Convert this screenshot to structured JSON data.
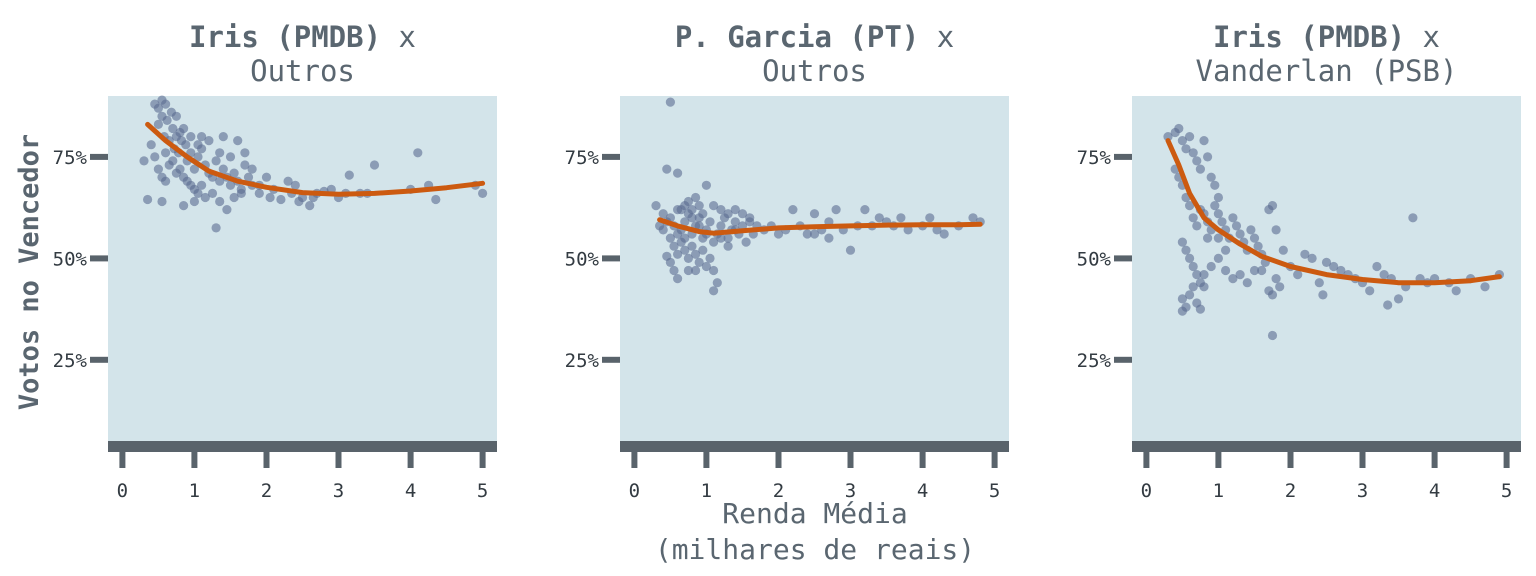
{
  "figure": {
    "ylabel": "Votos no Vencedor",
    "xlabel_line1": "Renda Média",
    "xlabel_line2": "(milhares de reais)",
    "colors": {
      "panel_bg": "#d3e4ea",
      "points": "#5b6d91",
      "fit_line": "#cc5a10",
      "axis": "#59636b",
      "text": "#5a6670"
    }
  },
  "chart_data": [
    {
      "type": "scatter",
      "title_bold": "Iris (PMDB)",
      "title_suffix": " x",
      "subtitle": "Outros",
      "xlim": [
        -0.2,
        5.2
      ],
      "ylim": [
        5,
        90
      ],
      "x_ticks": [
        0,
        1,
        2,
        3,
        4,
        5
      ],
      "y_ticks": [
        25,
        50,
        75
      ],
      "y_tick_labels": [
        "25%",
        "50%",
        "75%"
      ],
      "trend": [
        [
          0.35,
          83
        ],
        [
          0.6,
          79
        ],
        [
          0.9,
          75
        ],
        [
          1.2,
          71.5
        ],
        [
          1.6,
          69
        ],
        [
          2.0,
          67.5
        ],
        [
          2.5,
          66.2
        ],
        [
          3.0,
          65.8
        ],
        [
          3.5,
          66
        ],
        [
          4.0,
          66.6
        ],
        [
          4.5,
          67.4
        ],
        [
          5.0,
          68.5
        ]
      ],
      "points": [
        [
          0.45,
          88
        ],
        [
          0.5,
          87
        ],
        [
          0.55,
          89
        ],
        [
          0.6,
          88
        ],
        [
          0.62,
          84
        ],
        [
          0.68,
          86
        ],
        [
          0.7,
          82
        ],
        [
          0.75,
          80
        ],
        [
          0.8,
          81
        ],
        [
          0.5,
          83
        ],
        [
          0.55,
          85
        ],
        [
          0.58,
          80
        ],
        [
          0.65,
          79
        ],
        [
          0.72,
          77
        ],
        [
          0.78,
          76
        ],
        [
          0.82,
          79
        ],
        [
          0.88,
          78
        ],
        [
          0.9,
          74
        ],
        [
          0.95,
          76
        ],
        [
          1.0,
          72
        ],
        [
          1.05,
          75
        ],
        [
          1.1,
          77
        ],
        [
          1.15,
          73
        ],
        [
          1.2,
          71
        ],
        [
          1.25,
          70
        ],
        [
          1.3,
          74
        ],
        [
          1.35,
          69
        ],
        [
          1.4,
          72
        ],
        [
          1.45,
          70
        ],
        [
          1.5,
          68
        ],
        [
          1.55,
          71
        ],
        [
          1.6,
          69
        ],
        [
          1.65,
          67
        ],
        [
          1.7,
          73
        ],
        [
          1.75,
          70
        ],
        [
          1.8,
          68
        ],
        [
          0.6,
          76
        ],
        [
          0.65,
          73
        ],
        [
          0.7,
          74
        ],
        [
          0.75,
          71
        ],
        [
          0.8,
          72
        ],
        [
          0.85,
          70
        ],
        [
          0.9,
          69
        ],
        [
          0.95,
          68
        ],
        [
          1.0,
          67
        ],
        [
          1.05,
          66
        ],
        [
          1.1,
          68
        ],
        [
          1.15,
          65
        ],
        [
          1.25,
          66
        ],
        [
          1.35,
          64
        ],
        [
          1.45,
          62
        ],
        [
          1.55,
          65
        ],
        [
          1.65,
          66
        ],
        [
          0.4,
          78
        ],
        [
          0.45,
          75
        ],
        [
          0.5,
          72
        ],
        [
          0.55,
          70
        ],
        [
          0.6,
          69
        ],
        [
          0.3,
          74
        ],
        [
          0.35,
          64.5
        ],
        [
          0.55,
          64
        ],
        [
          0.85,
          63
        ],
        [
          1.0,
          64
        ],
        [
          1.3,
          57.5
        ],
        [
          1.4,
          80
        ],
        [
          1.6,
          79
        ],
        [
          1.7,
          76
        ],
        [
          2.0,
          70
        ],
        [
          2.1,
          67
        ],
        [
          2.2,
          64.5
        ],
        [
          2.3,
          69
        ],
        [
          2.4,
          68
        ],
        [
          2.5,
          65
        ],
        [
          2.6,
          63
        ],
        [
          2.7,
          66
        ],
        [
          2.8,
          66.5
        ],
        [
          2.9,
          67
        ],
        [
          3.0,
          65
        ],
        [
          3.1,
          66
        ],
        [
          3.15,
          70.5
        ],
        [
          3.3,
          66
        ],
        [
          3.4,
          66
        ],
        [
          3.5,
          73
        ],
        [
          4.0,
          67
        ],
        [
          4.1,
          76
        ],
        [
          4.25,
          68
        ],
        [
          4.35,
          64.5
        ],
        [
          4.9,
          68
        ],
        [
          5.0,
          66
        ],
        [
          1.9,
          68
        ],
        [
          2.05,
          65
        ],
        [
          2.35,
          66
        ],
        [
          2.45,
          64
        ],
        [
          2.65,
          65
        ],
        [
          1.2,
          79
        ],
        [
          1.1,
          80
        ],
        [
          1.05,
          78
        ],
        [
          0.95,
          80
        ],
        [
          0.85,
          82
        ],
        [
          0.75,
          85
        ],
        [
          1.8,
          72
        ],
        [
          1.9,
          66
        ],
        [
          1.5,
          75
        ],
        [
          1.35,
          76
        ]
      ]
    },
    {
      "type": "scatter",
      "title_bold": "P. Garcia (PT)",
      "title_suffix": " x",
      "subtitle": "Outros",
      "xlim": [
        -0.2,
        5.2
      ],
      "ylim": [
        5,
        90
      ],
      "x_ticks": [
        0,
        1,
        2,
        3,
        4,
        5
      ],
      "y_ticks": [
        25,
        50,
        75
      ],
      "y_tick_labels": [
        "25%",
        "50%",
        "75%"
      ],
      "trend": [
        [
          0.35,
          59.5
        ],
        [
          0.6,
          58
        ],
        [
          0.9,
          56.6
        ],
        [
          1.1,
          56.2
        ],
        [
          1.5,
          56.8
        ],
        [
          2.0,
          57.5
        ],
        [
          2.5,
          57.8
        ],
        [
          3.0,
          58
        ],
        [
          3.5,
          58.2
        ],
        [
          4.0,
          58.3
        ],
        [
          4.5,
          58.3
        ],
        [
          4.8,
          58.4
        ]
      ],
      "points": [
        [
          0.45,
          72
        ],
        [
          0.5,
          88.5
        ],
        [
          0.6,
          71
        ],
        [
          0.3,
          63
        ],
        [
          0.4,
          61
        ],
        [
          0.5,
          60
        ],
        [
          0.55,
          58
        ],
        [
          0.6,
          62
        ],
        [
          0.65,
          57
        ],
        [
          0.7,
          59
        ],
        [
          0.75,
          61
        ],
        [
          0.8,
          56
        ],
        [
          0.85,
          58
        ],
        [
          0.9,
          60
        ],
        [
          0.95,
          55
        ],
        [
          1.0,
          57
        ],
        [
          1.05,
          59
        ],
        [
          1.1,
          54
        ],
        [
          1.15,
          56
        ],
        [
          1.2,
          58
        ],
        [
          1.25,
          60
        ],
        [
          1.3,
          55
        ],
        [
          1.35,
          57
        ],
        [
          1.4,
          59
        ],
        [
          1.45,
          56
        ],
        [
          1.5,
          58
        ],
        [
          1.55,
          54
        ],
        [
          1.6,
          60
        ],
        [
          1.65,
          56
        ],
        [
          1.7,
          58
        ],
        [
          0.5,
          55
        ],
        [
          0.55,
          53
        ],
        [
          0.6,
          51
        ],
        [
          0.65,
          54
        ],
        [
          0.7,
          52
        ],
        [
          0.75,
          50
        ],
        [
          0.8,
          53
        ],
        [
          0.85,
          51
        ],
        [
          0.9,
          49
        ],
        [
          0.95,
          52
        ],
        [
          1.0,
          48
        ],
        [
          1.05,
          50
        ],
        [
          1.1,
          47
        ],
        [
          1.15,
          44
        ],
        [
          1.1,
          42
        ],
        [
          0.5,
          49
        ],
        [
          0.55,
          47
        ],
        [
          0.6,
          45
        ],
        [
          0.45,
          50.5
        ],
        [
          0.65,
          62
        ],
        [
          0.7,
          63
        ],
        [
          0.75,
          64
        ],
        [
          0.8,
          62
        ],
        [
          0.85,
          65
        ],
        [
          0.9,
          63
        ],
        [
          0.95,
          61
        ],
        [
          1.0,
          68
        ],
        [
          1.1,
          63
        ],
        [
          1.2,
          62
        ],
        [
          1.3,
          61
        ],
        [
          1.4,
          62
        ],
        [
          1.5,
          61
        ],
        [
          1.6,
          59
        ],
        [
          1.8,
          57
        ],
        [
          1.9,
          58
        ],
        [
          2.0,
          56
        ],
        [
          2.1,
          57
        ],
        [
          2.2,
          62
        ],
        [
          2.3,
          58
        ],
        [
          2.4,
          56
        ],
        [
          2.5,
          61
        ],
        [
          2.6,
          57
        ],
        [
          2.7,
          59
        ],
        [
          2.8,
          62
        ],
        [
          2.9,
          57
        ],
        [
          3.0,
          52
        ],
        [
          3.1,
          58
        ],
        [
          3.2,
          62
        ],
        [
          3.3,
          58
        ],
        [
          3.4,
          60
        ],
        [
          3.5,
          59
        ],
        [
          3.6,
          58
        ],
        [
          3.7,
          60
        ],
        [
          3.8,
          57
        ],
        [
          4.0,
          58
        ],
        [
          4.1,
          60
        ],
        [
          4.2,
          57
        ],
        [
          4.3,
          56
        ],
        [
          4.5,
          58
        ],
        [
          4.7,
          60
        ],
        [
          4.8,
          59
        ],
        [
          0.35,
          58
        ],
        [
          0.4,
          57
        ],
        [
          0.45,
          59
        ],
        [
          0.8,
          60
        ],
        [
          0.9,
          58
        ],
        [
          1.0,
          56
        ],
        [
          1.2,
          55
        ],
        [
          1.3,
          53
        ],
        [
          1.4,
          57
        ],
        [
          0.6,
          56
        ],
        [
          0.7,
          55
        ],
        [
          2.5,
          56
        ],
        [
          2.7,
          55
        ],
        [
          0.85,
          47
        ],
        [
          0.75,
          47
        ]
      ]
    },
    {
      "type": "scatter",
      "title_bold": "Iris (PMDB)",
      "title_suffix": " x",
      "subtitle": "Vanderlan (PSB)",
      "xlim": [
        -0.2,
        5.2
      ],
      "ylim": [
        5,
        90
      ],
      "x_ticks": [
        0,
        1,
        2,
        3,
        4,
        5
      ],
      "y_ticks": [
        25,
        50,
        75
      ],
      "y_tick_labels": [
        "25%",
        "50%",
        "75%"
      ],
      "trend": [
        [
          0.3,
          79
        ],
        [
          0.45,
          73
        ],
        [
          0.6,
          66
        ],
        [
          0.8,
          60
        ],
        [
          1.0,
          57
        ],
        [
          1.3,
          53.5
        ],
        [
          1.6,
          50.5
        ],
        [
          2.0,
          48
        ],
        [
          2.5,
          46
        ],
        [
          3.0,
          44.8
        ],
        [
          3.5,
          44
        ],
        [
          4.0,
          44
        ],
        [
          4.5,
          44.5
        ],
        [
          4.9,
          45.5
        ]
      ],
      "points": [
        [
          0.3,
          80
        ],
        [
          0.4,
          81
        ],
        [
          0.45,
          82
        ],
        [
          0.5,
          79
        ],
        [
          0.55,
          77
        ],
        [
          0.6,
          80
        ],
        [
          0.65,
          76
        ],
        [
          0.7,
          74
        ],
        [
          0.75,
          72
        ],
        [
          0.8,
          79
        ],
        [
          0.85,
          75
        ],
        [
          0.9,
          70
        ],
        [
          0.95,
          68
        ],
        [
          1.0,
          65
        ],
        [
          0.4,
          72
        ],
        [
          0.45,
          70
        ],
        [
          0.5,
          68
        ],
        [
          0.55,
          65
        ],
        [
          0.6,
          63
        ],
        [
          0.65,
          60
        ],
        [
          0.7,
          58
        ],
        [
          0.75,
          62
        ],
        [
          0.8,
          61
        ],
        [
          0.85,
          59
        ],
        [
          0.9,
          57
        ],
        [
          0.95,
          63
        ],
        [
          1.0,
          61
        ],
        [
          1.05,
          59
        ],
        [
          1.1,
          57
        ],
        [
          1.15,
          55
        ],
        [
          1.2,
          60
        ],
        [
          1.25,
          58
        ],
        [
          1.3,
          56
        ],
        [
          1.35,
          54
        ],
        [
          1.4,
          52
        ],
        [
          1.45,
          57
        ],
        [
          1.5,
          55
        ],
        [
          1.55,
          53
        ],
        [
          1.6,
          51
        ],
        [
          1.65,
          49
        ],
        [
          1.7,
          62
        ],
        [
          1.75,
          63
        ],
        [
          1.8,
          57
        ],
        [
          0.5,
          54
        ],
        [
          0.55,
          52
        ],
        [
          0.6,
          50
        ],
        [
          0.65,
          48
        ],
        [
          0.7,
          46
        ],
        [
          0.75,
          44
        ],
        [
          0.8,
          43
        ],
        [
          0.5,
          40
        ],
        [
          0.55,
          38
        ],
        [
          0.6,
          41
        ],
        [
          0.65,
          43
        ],
        [
          0.7,
          39
        ],
        [
          0.75,
          37.5
        ],
        [
          0.5,
          37
        ],
        [
          0.8,
          46
        ],
        [
          0.9,
          48
        ],
        [
          1.0,
          50
        ],
        [
          1.1,
          47
        ],
        [
          1.2,
          45
        ],
        [
          1.3,
          46
        ],
        [
          1.4,
          44
        ],
        [
          1.5,
          47
        ],
        [
          1.7,
          42
        ],
        [
          1.75,
          41
        ],
        [
          1.8,
          45
        ],
        [
          1.75,
          31
        ],
        [
          1.9,
          52
        ],
        [
          2.0,
          48
        ],
        [
          2.1,
          46
        ],
        [
          2.2,
          51
        ],
        [
          2.3,
          50
        ],
        [
          2.4,
          44
        ],
        [
          2.45,
          41
        ],
        [
          2.5,
          49
        ],
        [
          2.6,
          48
        ],
        [
          2.7,
          47
        ],
        [
          2.8,
          46
        ],
        [
          2.9,
          45
        ],
        [
          3.0,
          44
        ],
        [
          3.1,
          42
        ],
        [
          3.2,
          48
        ],
        [
          3.3,
          46
        ],
        [
          3.35,
          38.5
        ],
        [
          3.4,
          45
        ],
        [
          3.5,
          40
        ],
        [
          3.6,
          43
        ],
        [
          3.7,
          60
        ],
        [
          3.8,
          45
        ],
        [
          3.9,
          44
        ],
        [
          4.0,
          45
        ],
        [
          4.2,
          44
        ],
        [
          4.3,
          42
        ],
        [
          4.5,
          45
        ],
        [
          4.7,
          43
        ],
        [
          4.9,
          46
        ],
        [
          1.85,
          43
        ],
        [
          1.6,
          47
        ],
        [
          1.0,
          55
        ],
        [
          1.1,
          52
        ],
        [
          0.85,
          55
        ]
      ]
    }
  ]
}
